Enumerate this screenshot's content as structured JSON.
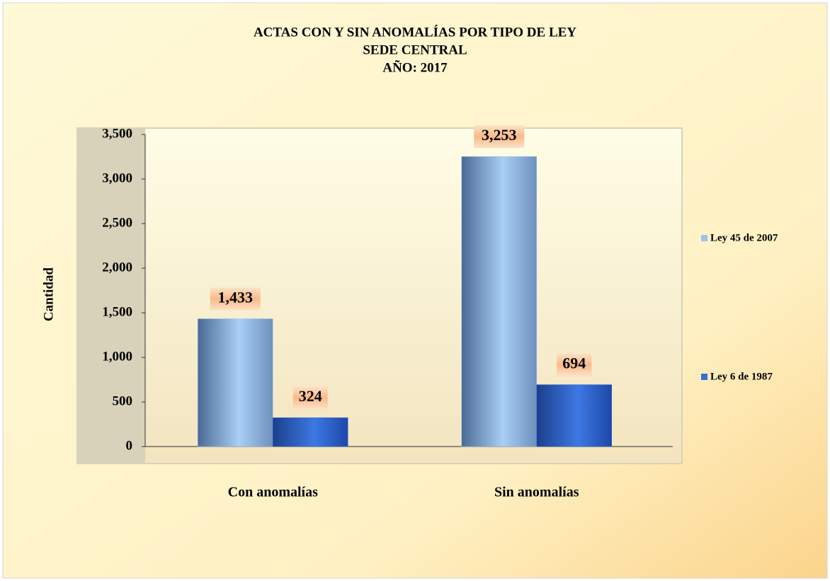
{
  "chart_data": {
    "type": "bar",
    "title": [
      "ACTAS CON Y SIN ANOMALÍAS  POR TIPO DE LEY",
      "SEDE CENTRAL",
      "AÑO: 2017"
    ],
    "y_label": "Cantidad",
    "categories": [
      "Con anomalías",
      "Sin anomalías"
    ],
    "series": [
      {
        "name": "Ley 45 de 2007",
        "color": "#9cc2ec",
        "values": [
          1433,
          3253
        ],
        "value_labels": [
          "1,433",
          "3,253"
        ]
      },
      {
        "name": "Ley 6 de 1987",
        "color": "#3a6fd6",
        "values": [
          324,
          694
        ],
        "value_labels": [
          "324",
          "694"
        ]
      }
    ],
    "ylim": [
      0,
      3500
    ],
    "yticks": [
      0,
      500,
      {
        "value": 1000,
        "label": "1,000"
      },
      {
        "value": 1500,
        "label": "1,500"
      },
      {
        "value": 2000,
        "label": "2,000"
      },
      {
        "value": 2500,
        "label": "2,500"
      },
      {
        "value": 3000,
        "label": "3,000"
      },
      {
        "value": 3500,
        "label": "3,500"
      }
    ],
    "legend": "right"
  }
}
